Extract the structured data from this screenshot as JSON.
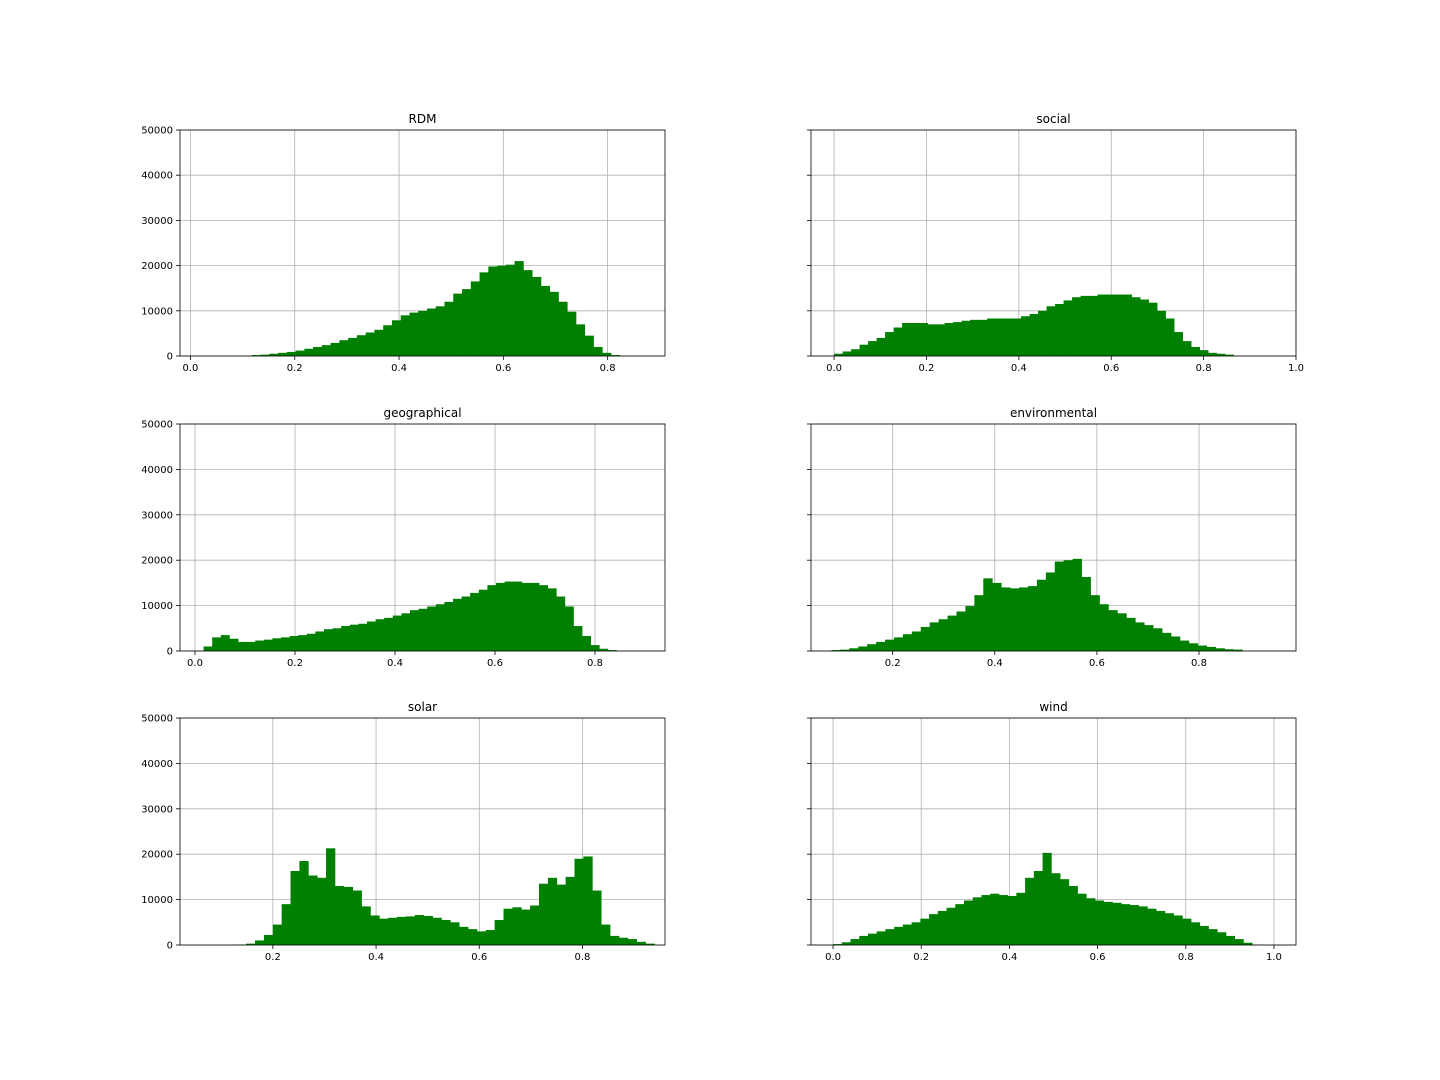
{
  "figure": {
    "layout": "3x2 grid",
    "sharey": true,
    "bar_color": "#008000",
    "grid": true
  },
  "chart_data": [
    {
      "type": "histogram",
      "title": "RDM",
      "xlim": [
        -0.02,
        0.91
      ],
      "ylim": [
        0,
        50000
      ],
      "xticks": [
        0.0,
        0.2,
        0.4,
        0.6,
        0.8
      ],
      "yticks": [
        0,
        10000,
        20000,
        30000,
        40000,
        50000
      ],
      "bin_start": 0.0,
      "bin_width": 0.0168,
      "values": [
        0,
        0,
        0,
        0,
        0,
        0,
        0,
        200,
        300,
        500,
        700,
        900,
        1200,
        1600,
        2000,
        2400,
        2900,
        3500,
        4000,
        4600,
        5200,
        5800,
        6800,
        7900,
        9000,
        9600,
        10000,
        10500,
        11000,
        12000,
        13800,
        14800,
        16500,
        18500,
        19800,
        20000,
        20200,
        21000,
        19000,
        17500,
        15500,
        14200,
        12000,
        9800,
        7000,
        4500,
        2000,
        700,
        200
      ]
    },
    {
      "type": "histogram",
      "title": "social",
      "xlim": [
        -0.05,
        1.0
      ],
      "ylim": [
        0,
        50000
      ],
      "xticks": [
        0.0,
        0.2,
        0.4,
        0.6,
        0.8,
        1.0
      ],
      "yticks": [
        0,
        10000,
        20000,
        30000,
        40000,
        50000
      ],
      "bin_start": 0.0,
      "bin_width": 0.0184,
      "values": [
        500,
        1000,
        1500,
        2500,
        3300,
        4000,
        5300,
        6300,
        7300,
        7300,
        7300,
        7000,
        7000,
        7300,
        7500,
        7800,
        8000,
        8000,
        8300,
        8300,
        8300,
        8300,
        8800,
        9300,
        10000,
        11000,
        11500,
        12300,
        13000,
        13300,
        13300,
        13600,
        13600,
        13600,
        13600,
        13000,
        12500,
        11800,
        10000,
        8300,
        5300,
        3300,
        2000,
        1300,
        700,
        500,
        300
      ]
    },
    {
      "type": "histogram",
      "title": "geographical",
      "xlim": [
        -0.03,
        0.94
      ],
      "ylim": [
        0,
        50000
      ],
      "xticks": [
        0.0,
        0.2,
        0.4,
        0.6,
        0.8
      ],
      "yticks": [
        0,
        10000,
        20000,
        30000,
        40000,
        50000
      ],
      "bin_start": 0.0,
      "bin_width": 0.0172,
      "values": [
        100,
        1000,
        3000,
        3500,
        2700,
        2000,
        2000,
        2300,
        2500,
        2800,
        3000,
        3300,
        3500,
        3800,
        4300,
        4800,
        5000,
        5500,
        5800,
        6000,
        6500,
        7000,
        7300,
        7800,
        8300,
        9000,
        9300,
        9800,
        10300,
        10800,
        11500,
        12000,
        12800,
        13500,
        14500,
        15000,
        15300,
        15300,
        15000,
        15000,
        14500,
        13800,
        12000,
        9800,
        5500,
        3300,
        1300,
        500,
        200
      ]
    },
    {
      "type": "histogram",
      "title": "environmental",
      "xlim": [
        0.04,
        0.99
      ],
      "ylim": [
        0,
        50000
      ],
      "xticks": [
        0.2,
        0.4,
        0.6,
        0.8
      ],
      "yticks": [
        0,
        10000,
        20000,
        30000,
        40000,
        50000
      ],
      "bin_start": 0.08,
      "bin_width": 0.0175,
      "values": [
        200,
        300,
        600,
        1000,
        1500,
        2000,
        2500,
        3000,
        3700,
        4300,
        5300,
        6300,
        7000,
        7800,
        8700,
        9900,
        12300,
        16000,
        15000,
        14000,
        13800,
        14000,
        14300,
        15700,
        17300,
        19700,
        20000,
        20300,
        16300,
        12300,
        10300,
        9000,
        8300,
        7300,
        6300,
        5700,
        5000,
        4000,
        3200,
        2300,
        1700,
        1200,
        900,
        600,
        400,
        300
      ]
    },
    {
      "type": "histogram",
      "title": "solar",
      "xlim": [
        0.02,
        0.96
      ],
      "ylim": [
        0,
        50000
      ],
      "xticks": [
        0.2,
        0.4,
        0.6,
        0.8
      ],
      "yticks": [
        0,
        10000,
        20000,
        30000,
        40000,
        50000
      ],
      "bin_start": 0.045,
      "bin_width": 0.0172,
      "values": [
        0,
        0,
        0,
        0,
        0,
        100,
        300,
        1000,
        2200,
        4500,
        9000,
        16300,
        18500,
        15300,
        14800,
        21300,
        13000,
        12800,
        12000,
        8500,
        6500,
        5800,
        6000,
        6200,
        6300,
        6600,
        6400,
        6000,
        5500,
        5000,
        4000,
        3500,
        3000,
        3300,
        5500,
        8000,
        8300,
        7800,
        8700,
        13500,
        14800,
        13300,
        15000,
        19000,
        19500,
        12000,
        4500,
        2000,
        1600,
        1300,
        700,
        300
      ]
    },
    {
      "type": "histogram",
      "title": "wind",
      "xlim": [
        -0.05,
        1.05
      ],
      "ylim": [
        0,
        50000
      ],
      "xticks": [
        0.0,
        0.2,
        0.4,
        0.6,
        0.8,
        1.0
      ],
      "yticks": [
        0,
        10000,
        20000,
        30000,
        40000,
        50000
      ],
      "bin_start": 0.0,
      "bin_width": 0.0198,
      "values": [
        200,
        600,
        1300,
        2000,
        2500,
        3000,
        3500,
        4000,
        4500,
        5000,
        5800,
        6800,
        7500,
        8200,
        9000,
        9800,
        10500,
        11000,
        11300,
        11000,
        10800,
        11500,
        14800,
        16300,
        20300,
        15800,
        14500,
        13000,
        11300,
        10300,
        9800,
        9500,
        9300,
        9000,
        8800,
        8500,
        8000,
        7500,
        7000,
        6500,
        5800,
        5000,
        4200,
        3500,
        2800,
        2000,
        1300,
        500,
        100
      ]
    }
  ]
}
